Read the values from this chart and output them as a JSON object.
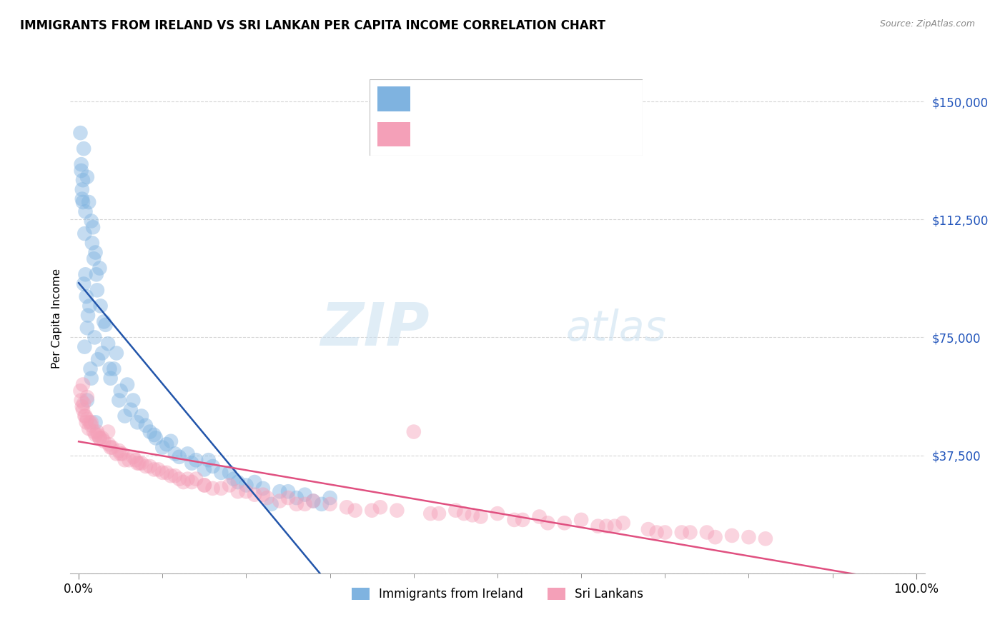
{
  "title": "IMMIGRANTS FROM IRELAND VS SRI LANKAN PER CAPITA INCOME CORRELATION CHART",
  "source": "Source: ZipAtlas.com",
  "ylabel": "Per Capita Income",
  "xlim": [
    -1.0,
    101.0
  ],
  "ylim": [
    0,
    162000
  ],
  "yticks": [
    0,
    37500,
    75000,
    112500,
    150000
  ],
  "ytick_labels": [
    "",
    "$37,500",
    "$75,000",
    "$112,500",
    "$150,000"
  ],
  "xtick_positions": [
    0,
    100
  ],
  "xtick_labels": [
    "0.0%",
    "100.0%"
  ],
  "legend_label1": "Immigrants from Ireland",
  "legend_label2": "Sri Lankans",
  "color_blue": "#7fb3e0",
  "color_pink": "#f4a0b8",
  "color_blue_line": "#2255aa",
  "color_pink_line": "#e05080",
  "color_legend_text": "#2255bb",
  "watermark_zip": "ZIP",
  "watermark_atlas": "atlas",
  "background_color": "#ffffff",
  "grid_color": "#cccccc",
  "ireland_x": [
    0.3,
    0.4,
    0.5,
    0.5,
    0.6,
    0.6,
    0.7,
    0.7,
    0.8,
    0.8,
    0.9,
    1.0,
    1.0,
    1.1,
    1.2,
    1.3,
    1.4,
    1.5,
    1.6,
    1.7,
    1.8,
    1.9,
    2.0,
    2.1,
    2.2,
    2.3,
    2.5,
    2.6,
    2.8,
    3.0,
    3.2,
    3.5,
    3.7,
    3.8,
    4.2,
    4.5,
    4.8,
    5.0,
    5.5,
    5.8,
    6.2,
    6.5,
    7.0,
    7.5,
    8.0,
    8.5,
    9.0,
    9.2,
    10.0,
    10.5,
    11.0,
    11.5,
    12.0,
    13.0,
    13.5,
    14.0,
    15.0,
    15.5,
    16.0,
    17.0,
    18.0,
    18.5,
    19.0,
    20.0,
    21.0,
    22.0,
    23.0,
    24.0,
    25.0,
    26.0,
    27.0,
    28.0,
    29.0,
    30.0,
    0.2,
    0.3,
    0.4,
    1.0,
    1.5,
    2.0
  ],
  "ireland_y": [
    130000,
    122000,
    125000,
    118000,
    92000,
    135000,
    108000,
    72000,
    95000,
    115000,
    88000,
    126000,
    78000,
    82000,
    118000,
    85000,
    65000,
    112000,
    105000,
    110000,
    100000,
    75000,
    102000,
    95000,
    90000,
    68000,
    97000,
    85000,
    70000,
    80000,
    79000,
    73000,
    65000,
    62000,
    65000,
    70000,
    55000,
    58000,
    50000,
    60000,
    52000,
    55000,
    48000,
    50000,
    47000,
    45000,
    44000,
    43000,
    40000,
    41000,
    42000,
    38000,
    37000,
    38000,
    35000,
    36000,
    33000,
    36000,
    34000,
    32000,
    32000,
    30000,
    29000,
    28000,
    29000,
    27000,
    22000,
    26000,
    26000,
    24000,
    25000,
    23000,
    22000,
    24000,
    140000,
    128000,
    119000,
    55000,
    62000,
    48000
  ],
  "srilanka_x": [
    0.2,
    0.3,
    0.4,
    0.5,
    0.6,
    0.7,
    0.8,
    0.9,
    1.0,
    1.2,
    1.5,
    1.8,
    2.0,
    2.2,
    2.5,
    3.0,
    3.5,
    4.0,
    4.5,
    5.0,
    5.5,
    6.0,
    6.5,
    7.0,
    7.5,
    8.0,
    9.0,
    10.0,
    11.0,
    12.0,
    13.0,
    14.0,
    15.0,
    16.0,
    17.0,
    18.0,
    19.0,
    20.0,
    21.0,
    22.0,
    24.0,
    25.0,
    27.0,
    28.0,
    30.0,
    32.0,
    35.0,
    38.0,
    40.0,
    42.0,
    45.0,
    47.0,
    48.0,
    50.0,
    52.0,
    55.0,
    58.0,
    60.0,
    62.0,
    65.0,
    68.0,
    70.0,
    72.0,
    75.0,
    78.0,
    80.0,
    82.0,
    0.5,
    1.0,
    1.5,
    2.5,
    3.8,
    5.2,
    6.8,
    8.5,
    10.5,
    12.5,
    22.5,
    33.0,
    43.0,
    53.0,
    63.0,
    73.0,
    1.3,
    2.8,
    4.8,
    7.2,
    13.5,
    26.0,
    36.0,
    46.0,
    56.0,
    64.0,
    69.0,
    76.0,
    2.3,
    3.6,
    9.5,
    11.5,
    15.0
  ],
  "srilanka_y": [
    58000,
    55000,
    53000,
    52000,
    54000,
    50000,
    50000,
    48000,
    49000,
    46000,
    47000,
    45000,
    44000,
    45000,
    43000,
    42000,
    45000,
    40000,
    38000,
    38000,
    36000,
    36000,
    37000,
    35000,
    35000,
    34000,
    33000,
    32000,
    31000,
    30000,
    30000,
    30000,
    28000,
    27000,
    27000,
    28000,
    26000,
    26000,
    25000,
    25000,
    23000,
    24000,
    22000,
    23000,
    22000,
    21000,
    20000,
    20000,
    45000,
    19000,
    20000,
    18500,
    18000,
    19000,
    17000,
    18000,
    16000,
    17000,
    15000,
    16000,
    14000,
    13000,
    13000,
    13000,
    12000,
    11500,
    11000,
    60000,
    56000,
    48000,
    43000,
    40000,
    38000,
    36000,
    34000,
    32000,
    29000,
    24000,
    20000,
    19000,
    17000,
    15000,
    13000,
    48000,
    43000,
    39000,
    35000,
    29000,
    22000,
    21000,
    19000,
    16000,
    15000,
    13000,
    11500,
    44000,
    41000,
    33000,
    31000,
    28000
  ]
}
